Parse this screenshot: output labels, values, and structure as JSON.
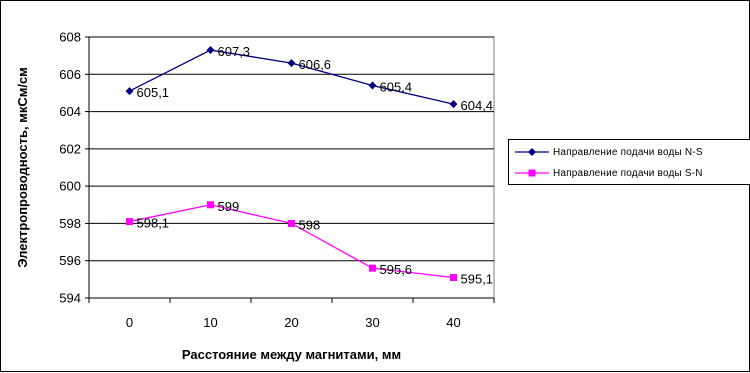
{
  "chart_data": {
    "type": "line",
    "categories": [
      "0",
      "10",
      "20",
      "30",
      "40"
    ],
    "series": [
      {
        "name": "Направление подачи воды N-S",
        "color": "#000080",
        "marker": "diamond",
        "values": [
          605.1,
          607.3,
          606.6,
          605.4,
          604.4
        ],
        "labels": [
          "605,1",
          "607,3",
          "606,6",
          "605,4",
          "604,4"
        ]
      },
      {
        "name": "Направление подачи воды S-N",
        "color": "#FF00FF",
        "marker": "square",
        "values": [
          598.1,
          599,
          598,
          595.6,
          595.1
        ],
        "labels": [
          "598,1",
          "599",
          "598",
          "595,6",
          "595,1"
        ]
      }
    ],
    "xlabel": "Расстояние между магнитами, мм",
    "ylabel": "Электропроводность, мкСм/см",
    "ylim": [
      594,
      608
    ],
    "yticks": [
      "594",
      "596",
      "598",
      "600",
      "602",
      "604",
      "606",
      "608"
    ],
    "grid": true,
    "legend_position": "right"
  }
}
